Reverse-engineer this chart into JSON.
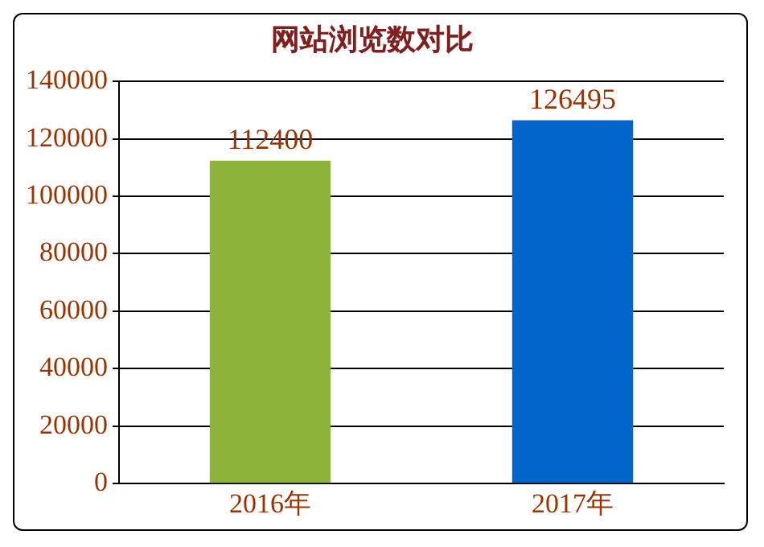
{
  "chart_data": {
    "type": "bar",
    "title": "网站浏览数对比",
    "categories": [
      "2016年",
      "2017年"
    ],
    "values": [
      112400,
      126495
    ],
    "colors": [
      "#8db33a",
      "#0066cc"
    ],
    "ylim": [
      0,
      140000
    ],
    "yticks": [
      0,
      20000,
      40000,
      60000,
      80000,
      100000,
      120000,
      140000
    ],
    "grid": "y",
    "data_labels": true
  }
}
